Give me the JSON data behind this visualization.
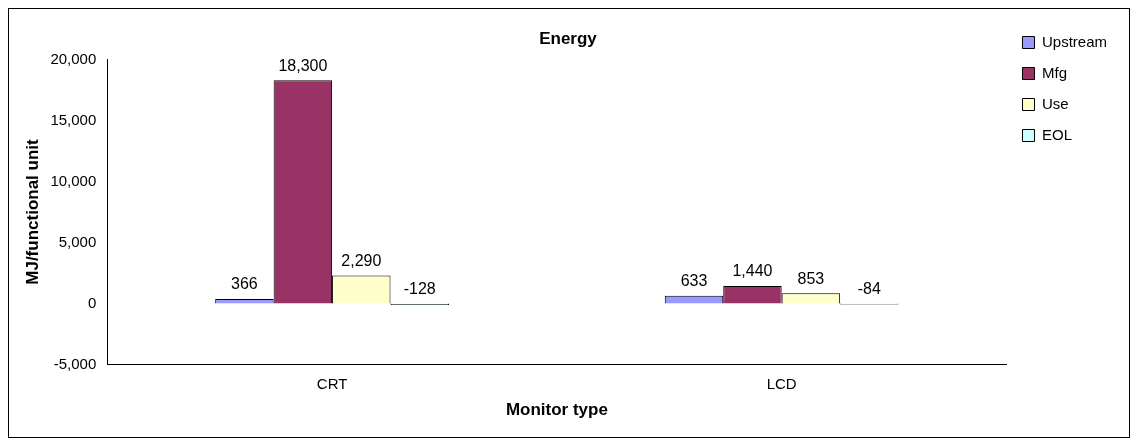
{
  "chart_data": {
    "type": "bar",
    "title": "Energy",
    "xlabel": "Monitor type",
    "ylabel": "MJ/functional unit",
    "categories": [
      "CRT",
      "LCD"
    ],
    "series": [
      {
        "name": "Upstream",
        "color": "#9999ff",
        "values": [
          366,
          633
        ],
        "value_labels": [
          "366",
          "633"
        ]
      },
      {
        "name": "Mfg",
        "color": "#993366",
        "values": [
          18300,
          1440
        ],
        "value_labels": [
          "18,300",
          "1,440"
        ]
      },
      {
        "name": "Use",
        "color": "#ffffcc",
        "values": [
          2290,
          853
        ],
        "value_labels": [
          "2,290",
          "853"
        ]
      },
      {
        "name": "EOL",
        "color": "#ccffff",
        "values": [
          -128,
          -84
        ],
        "value_labels": [
          "-128",
          "-84"
        ]
      }
    ],
    "ylim": [
      -5000,
      20000
    ],
    "yticks": [
      {
        "value": -5000,
        "label": "-5,000"
      },
      0,
      {
        "value": 5000,
        "label": "5,000"
      },
      {
        "value": 10000,
        "label": "10,000"
      },
      {
        "value": 15000,
        "label": "15,000"
      },
      {
        "value": 20000,
        "label": "20,000"
      }
    ],
    "grid": false,
    "legend": "top right"
  }
}
